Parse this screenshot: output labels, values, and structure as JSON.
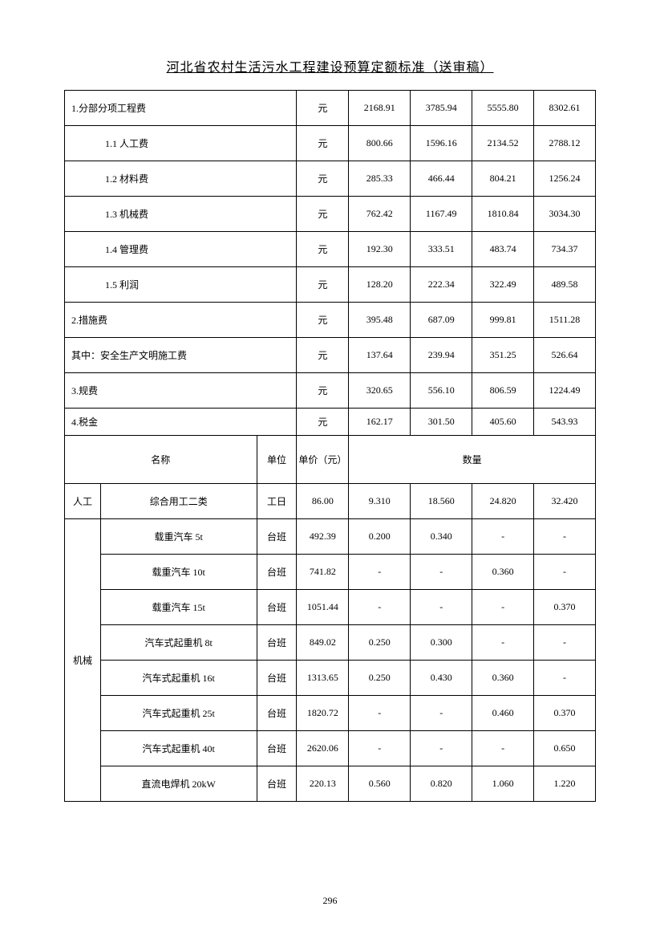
{
  "title": "河北省农村生活污水工程建设预算定额标准（送审稿）",
  "pageNumber": "296",
  "section1": {
    "rows": [
      {
        "label": "1.分部分项工程费",
        "indent": 0,
        "unit": "元",
        "v1": "2168.91",
        "v2": "3785.94",
        "v3": "5555.80",
        "v4": "8302.61"
      },
      {
        "label": "1.1 人工费",
        "indent": 1,
        "unit": "元",
        "v1": "800.66",
        "v2": "1596.16",
        "v3": "2134.52",
        "v4": "2788.12"
      },
      {
        "label": "1.2 材料费",
        "indent": 1,
        "unit": "元",
        "v1": "285.33",
        "v2": "466.44",
        "v3": "804.21",
        "v4": "1256.24"
      },
      {
        "label": "1.3 机械费",
        "indent": 1,
        "unit": "元",
        "v1": "762.42",
        "v2": "1167.49",
        "v3": "1810.84",
        "v4": "3034.30"
      },
      {
        "label": "1.4 管理费",
        "indent": 1,
        "unit": "元",
        "v1": "192.30",
        "v2": "333.51",
        "v3": "483.74",
        "v4": "734.37"
      },
      {
        "label": "1.5 利润",
        "indent": 1,
        "unit": "元",
        "v1": "128.20",
        "v2": "222.34",
        "v3": "322.49",
        "v4": "489.58"
      },
      {
        "label": "2.措施费",
        "indent": 0,
        "unit": "元",
        "v1": "395.48",
        "v2": "687.09",
        "v3": "999.81",
        "v4": "1511.28"
      },
      {
        "label": "其中：安全生产文明施工费",
        "indent": 0,
        "unit": "元",
        "v1": "137.64",
        "v2": "239.94",
        "v3": "351.25",
        "v4": "526.64"
      },
      {
        "label": "3.规费",
        "indent": 0,
        "unit": "元",
        "v1": "320.65",
        "v2": "556.10",
        "v3": "806.59",
        "v4": "1224.49"
      },
      {
        "label": "4.税金",
        "indent": 0,
        "unit": "元",
        "v1": "162.17",
        "v2": "301.50",
        "v3": "405.60",
        "v4": "543.93"
      }
    ]
  },
  "header2": {
    "name": "名称",
    "unit": "单位",
    "price": "单价（元）",
    "qty": "数量"
  },
  "section2": {
    "laborLabel": "人工",
    "laborRow": {
      "name": "综合用工二类",
      "unit": "工日",
      "price": "86.00",
      "v1": "9.310",
      "v2": "18.560",
      "v3": "24.820",
      "v4": "32.420"
    },
    "machineLabel": "机械",
    "machineRows": [
      {
        "name": "载重汽车 5t",
        "unit": "台班",
        "price": "492.39",
        "v1": "0.200",
        "v2": "0.340",
        "v3": "-",
        "v4": "-"
      },
      {
        "name": "载重汽车 10t",
        "unit": "台班",
        "price": "741.82",
        "v1": "-",
        "v2": "-",
        "v3": "0.360",
        "v4": "-"
      },
      {
        "name": "载重汽车 15t",
        "unit": "台班",
        "price": "1051.44",
        "v1": "-",
        "v2": "-",
        "v3": "-",
        "v4": "0.370"
      },
      {
        "name": "汽车式起重机 8t",
        "unit": "台班",
        "price": "849.02",
        "v1": "0.250",
        "v2": "0.300",
        "v3": "-",
        "v4": "-"
      },
      {
        "name": "汽车式起重机 16t",
        "unit": "台班",
        "price": "1313.65",
        "v1": "0.250",
        "v2": "0.430",
        "v3": "0.360",
        "v4": "-"
      },
      {
        "name": "汽车式起重机 25t",
        "unit": "台班",
        "price": "1820.72",
        "v1": "-",
        "v2": "-",
        "v3": "0.460",
        "v4": "0.370"
      },
      {
        "name": "汽车式起重机 40t",
        "unit": "台班",
        "price": "2620.06",
        "v1": "-",
        "v2": "-",
        "v3": "-",
        "v4": "0.650"
      },
      {
        "name": "直流电焊机 20kW",
        "unit": "台班",
        "price": "220.13",
        "v1": "0.560",
        "v2": "0.820",
        "v3": "1.060",
        "v4": "1.220"
      }
    ]
  }
}
